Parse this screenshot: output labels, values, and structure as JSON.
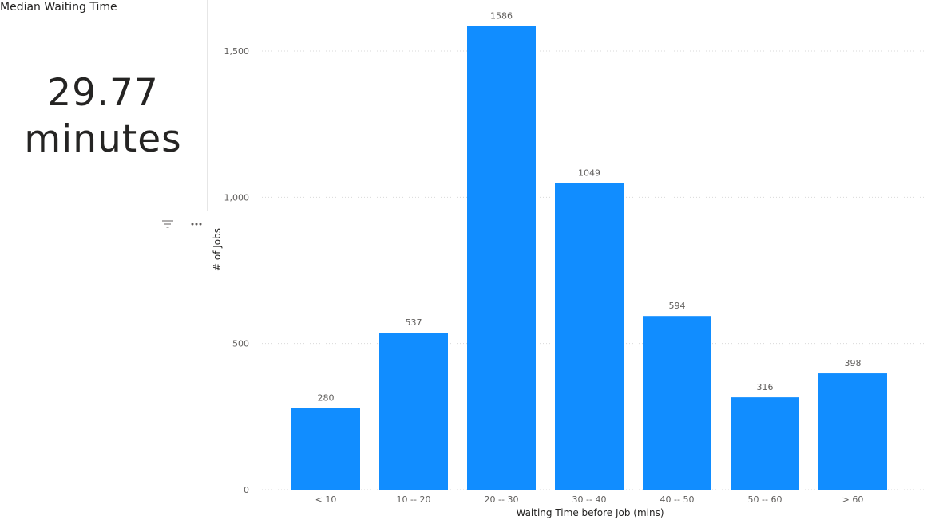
{
  "card": {
    "title": "Median Waiting Time",
    "value": "29.77",
    "unit": "minutes"
  },
  "icons": {
    "filter": "filter-icon",
    "more": "more-options-icon"
  },
  "colors": {
    "bar": "#118DFF",
    "text": "#252423",
    "muted": "#605E5C"
  },
  "chart_data": {
    "type": "bar",
    "categories": [
      "< 10",
      "10 -- 20",
      "20 -- 30",
      "30 -- 40",
      "40 -- 50",
      "50 -- 60",
      "> 60"
    ],
    "values": [
      280,
      537,
      1586,
      1049,
      594,
      316,
      398
    ],
    "data_labels": [
      "280",
      "537",
      "1586",
      "1049",
      "594",
      "316",
      "398"
    ],
    "xlabel": "Waiting Time before Job (mins)",
    "ylabel": "# of Jobs",
    "ylim": [
      0,
      1600
    ],
    "yticks": [
      0,
      500,
      1000,
      1500
    ],
    "ytick_labels": [
      "0",
      "500",
      "1,000",
      "1,500"
    ],
    "grid": true
  }
}
